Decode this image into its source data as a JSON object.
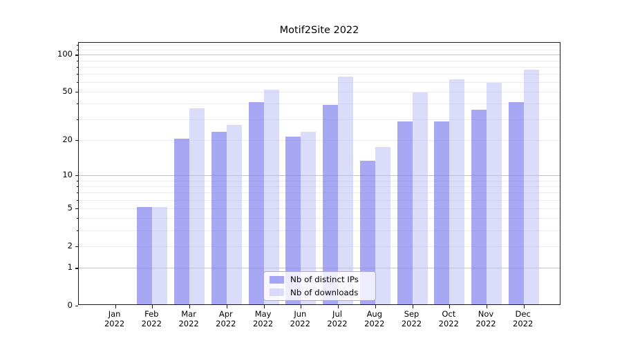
{
  "chart_data": {
    "type": "bar",
    "title": "Motif2Site 2022",
    "categories": [
      "Jan",
      "Feb",
      "Mar",
      "Apr",
      "May",
      "Jun",
      "Jul",
      "Aug",
      "Sep",
      "Oct",
      "Nov",
      "Dec"
    ],
    "category_year": "2022",
    "series": [
      {
        "key": "ips",
        "name": "Nb of distinct IPs",
        "color": "rgba(130,130,240,0.70)",
        "values": [
          0,
          5,
          20,
          23,
          40,
          21,
          38,
          13,
          28,
          28,
          35,
          40
        ]
      },
      {
        "key": "downloads",
        "name": "Nb of downloads",
        "color": "rgba(190,190,245,0.55)",
        "values": [
          0,
          5,
          36,
          26,
          51,
          23,
          65,
          17,
          48,
          62,
          58,
          74
        ]
      }
    ],
    "yscale": "log1p",
    "ylim": [
      0,
      125
    ],
    "ytick_values": [
      0,
      1,
      2,
      5,
      10,
      20,
      50,
      100
    ],
    "ytick_labels": [
      "0",
      "1",
      "2",
      "5",
      "10",
      "20",
      "50",
      "100"
    ],
    "major_grid_values": [
      1,
      10,
      100
    ],
    "minor_grid_values": [
      2,
      3,
      4,
      5,
      6,
      7,
      8,
      9,
      20,
      30,
      40,
      50,
      60,
      70,
      80,
      90,
      110,
      120
    ],
    "grid": true,
    "legend_position": "lower center",
    "colors": {
      "major_grid": "#c3c3c3",
      "minor_grid": "#ebebeb",
      "spine": "#1a1a1a",
      "legend_border": "#b0b0b0"
    }
  }
}
